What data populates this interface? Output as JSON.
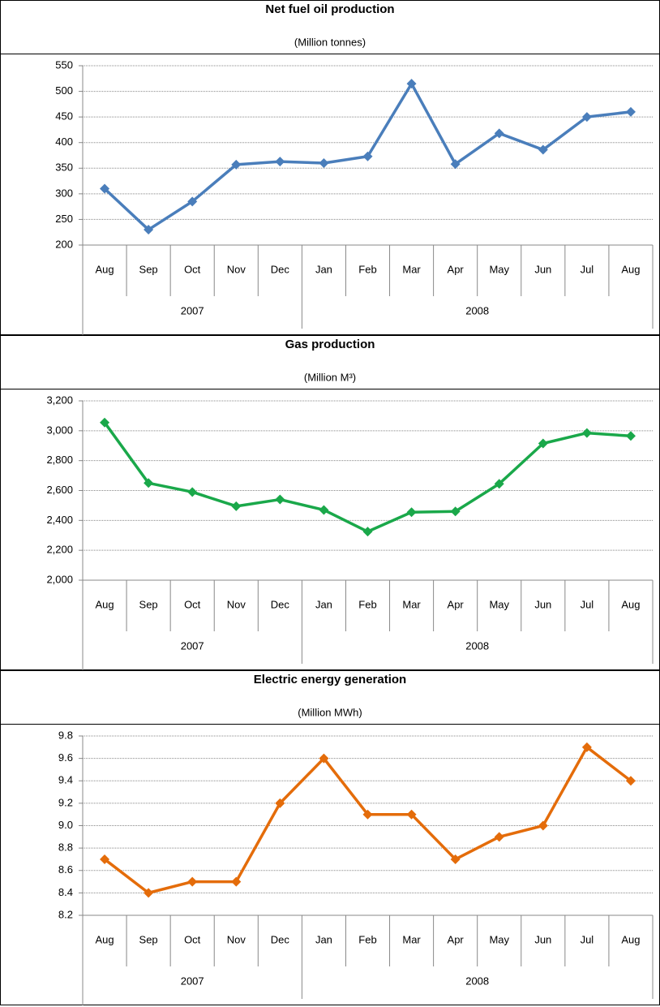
{
  "chart_data": [
    {
      "type": "line",
      "title": "Net fuel oil production",
      "subtitle": "(Million tonnes)",
      "category_groups": [
        {
          "name": "2007",
          "categories": [
            "Aug",
            "Sep",
            "Oct",
            "Nov",
            "Dec"
          ]
        },
        {
          "name": "2008",
          "categories": [
            "Jan",
            "Feb",
            "Mar",
            "Apr",
            "May",
            "Jun",
            "Jul",
            "Aug"
          ]
        }
      ],
      "series": [
        {
          "name": "Net fuel oil production",
          "color": "#4a7ebb",
          "values": [
            310,
            230,
            285,
            357,
            363,
            360,
            373,
            515,
            358,
            418,
            386,
            450,
            460
          ]
        }
      ],
      "ylim": [
        200,
        550
      ],
      "yticks": [
        200,
        250,
        300,
        350,
        400,
        450,
        500,
        550
      ],
      "grid": true
    },
    {
      "type": "line",
      "title": "Gas production",
      "subtitle": "(Million M³)",
      "category_groups": [
        {
          "name": "2007",
          "categories": [
            "Aug",
            "Sep",
            "Oct",
            "Nov",
            "Dec"
          ]
        },
        {
          "name": "2008",
          "categories": [
            "Jan",
            "Feb",
            "Mar",
            "Apr",
            "May",
            "Jun",
            "Jul",
            "Aug"
          ]
        }
      ],
      "series": [
        {
          "name": "Gas production",
          "color": "#1aa84a",
          "values": [
            3055,
            2650,
            2590,
            2495,
            2540,
            2470,
            2325,
            2455,
            2460,
            2645,
            2915,
            2985,
            2965
          ]
        }
      ],
      "ylim": [
        2000,
        3200
      ],
      "yticks": [
        {
          "value": 2000,
          "label": "2,000"
        },
        {
          "value": 2200,
          "label": "2,200"
        },
        {
          "value": 2400,
          "label": "2,400"
        },
        {
          "value": 2600,
          "label": "2,600"
        },
        {
          "value": 2800,
          "label": "2,800"
        },
        {
          "value": 3000,
          "label": "3,000"
        },
        {
          "value": 3200,
          "label": "3,200"
        }
      ],
      "grid": true
    },
    {
      "type": "line",
      "title": "Electric energy generation",
      "subtitle": "(Million MWh)",
      "category_groups": [
        {
          "name": "2007",
          "categories": [
            "Aug",
            "Sep",
            "Oct",
            "Nov",
            "Dec"
          ]
        },
        {
          "name": "2008",
          "categories": [
            "Jan",
            "Feb",
            "Mar",
            "Apr",
            "May",
            "Jun",
            "Jul",
            "Aug"
          ]
        }
      ],
      "series": [
        {
          "name": "Electric energy generation",
          "color": "#e46c0a",
          "values": [
            8.7,
            8.4,
            8.5,
            8.5,
            9.2,
            9.6,
            9.1,
            9.1,
            8.7,
            8.9,
            9.0,
            9.7,
            9.4
          ]
        }
      ],
      "ylim": [
        8.2,
        9.8
      ],
      "yticks": [
        8.2,
        8.4,
        8.6,
        8.8,
        {
          "value": 9.0,
          "label": "9.0"
        },
        9.2,
        9.4,
        9.6,
        9.8
      ],
      "grid": true
    }
  ]
}
